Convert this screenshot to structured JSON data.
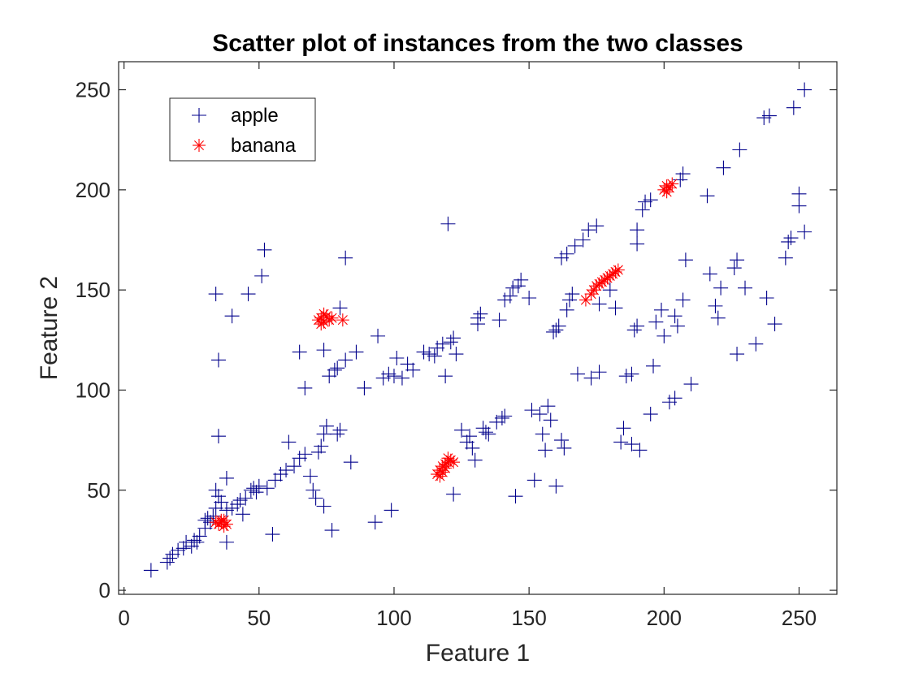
{
  "chart_data": {
    "type": "scatter",
    "title": "Scatter plot of instances from the two classes",
    "xlabel": "Feature 1",
    "ylabel": "Feature 2",
    "xlim": [
      -2,
      264
    ],
    "ylim": [
      -2,
      264
    ],
    "xticks": [
      0,
      50,
      100,
      150,
      200,
      250
    ],
    "yticks": [
      0,
      50,
      100,
      150,
      200,
      250
    ],
    "grid": false,
    "legend_position": "top-left",
    "series": [
      {
        "name": "apple",
        "marker": "plus",
        "color": "#00008B",
        "points": [
          [
            10,
            10
          ],
          [
            16,
            14
          ],
          [
            17,
            16
          ],
          [
            18,
            18
          ],
          [
            20,
            20
          ],
          [
            22,
            21
          ],
          [
            23,
            24
          ],
          [
            25,
            22
          ],
          [
            26,
            25
          ],
          [
            27,
            24
          ],
          [
            28,
            27
          ],
          [
            30,
            31
          ],
          [
            30,
            35
          ],
          [
            31,
            36
          ],
          [
            32,
            34
          ],
          [
            33,
            37
          ],
          [
            34,
            41
          ],
          [
            34,
            50
          ],
          [
            35,
            47
          ],
          [
            36,
            44
          ],
          [
            38,
            40
          ],
          [
            38,
            56
          ],
          [
            38,
            24
          ],
          [
            40,
            41
          ],
          [
            42,
            43
          ],
          [
            43,
            45
          ],
          [
            44,
            38
          ],
          [
            45,
            46
          ],
          [
            47,
            50
          ],
          [
            48,
            51
          ],
          [
            49,
            49
          ],
          [
            50,
            52
          ],
          [
            53,
            51
          ],
          [
            55,
            28
          ],
          [
            56,
            55
          ],
          [
            58,
            58
          ],
          [
            60,
            60
          ],
          [
            61,
            74
          ],
          [
            63,
            62
          ],
          [
            65,
            66
          ],
          [
            67,
            68
          ],
          [
            69,
            57
          ],
          [
            70,
            50
          ],
          [
            71,
            46
          ],
          [
            72,
            69
          ],
          [
            73,
            72
          ],
          [
            74,
            78
          ],
          [
            74,
            42
          ],
          [
            75,
            82
          ],
          [
            77,
            30
          ],
          [
            79,
            78
          ],
          [
            80,
            80
          ],
          [
            84,
            64
          ],
          [
            34,
            148
          ],
          [
            35,
            115
          ],
          [
            35,
            77
          ],
          [
            40,
            137
          ],
          [
            46,
            148
          ],
          [
            51,
            157
          ],
          [
            52,
            170
          ],
          [
            65,
            119
          ],
          [
            67,
            101
          ],
          [
            74,
            120
          ],
          [
            76,
            107
          ],
          [
            78,
            110
          ],
          [
            79,
            111
          ],
          [
            80,
            141
          ],
          [
            82,
            166
          ],
          [
            82,
            115
          ],
          [
            86,
            119
          ],
          [
            89,
            101
          ],
          [
            94,
            127
          ],
          [
            93,
            34
          ],
          [
            99,
            40
          ],
          [
            96,
            106
          ],
          [
            98,
            108
          ],
          [
            100,
            107
          ],
          [
            101,
            116
          ],
          [
            103,
            106
          ],
          [
            105,
            113
          ],
          [
            107,
            110
          ],
          [
            111,
            119
          ],
          [
            113,
            118
          ],
          [
            115,
            117
          ],
          [
            116,
            121
          ],
          [
            118,
            123
          ],
          [
            119,
            107
          ],
          [
            120,
            183
          ],
          [
            121,
            124
          ],
          [
            122,
            126
          ],
          [
            123,
            118
          ],
          [
            122,
            48
          ],
          [
            125,
            80
          ],
          [
            127,
            74
          ],
          [
            128,
            77
          ],
          [
            129,
            71
          ],
          [
            130,
            65
          ],
          [
            131,
            136
          ],
          [
            131,
            133
          ],
          [
            132,
            138
          ],
          [
            133,
            81
          ],
          [
            134,
            79
          ],
          [
            135,
            78
          ],
          [
            138,
            84
          ],
          [
            140,
            86
          ],
          [
            141,
            87
          ],
          [
            139,
            135
          ],
          [
            141,
            145
          ],
          [
            143,
            147
          ],
          [
            144,
            151
          ],
          [
            146,
            152
          ],
          [
            145,
            47
          ],
          [
            147,
            155
          ],
          [
            150,
            146
          ],
          [
            151,
            90
          ],
          [
            152,
            55
          ],
          [
            154,
            88
          ],
          [
            155,
            78
          ],
          [
            156,
            70
          ],
          [
            157,
            92
          ],
          [
            158,
            85
          ],
          [
            159,
            129
          ],
          [
            160,
            130
          ],
          [
            161,
            132
          ],
          [
            160,
            52
          ],
          [
            162,
            75
          ],
          [
            163,
            71
          ],
          [
            164,
            140
          ],
          [
            165,
            145
          ],
          [
            166,
            148
          ],
          [
            162,
            166
          ],
          [
            164,
            168
          ],
          [
            167,
            172
          ],
          [
            170,
            175
          ],
          [
            172,
            180
          ],
          [
            175,
            182
          ],
          [
            168,
            108
          ],
          [
            173,
            106
          ],
          [
            176,
            109
          ],
          [
            176,
            143
          ],
          [
            180,
            150
          ],
          [
            182,
            141
          ],
          [
            184,
            74
          ],
          [
            185,
            81
          ],
          [
            186,
            107
          ],
          [
            188,
            108
          ],
          [
            188,
            73
          ],
          [
            189,
            130
          ],
          [
            190,
            132
          ],
          [
            191,
            70
          ],
          [
            190,
            173
          ],
          [
            190,
            180
          ],
          [
            192,
            190
          ],
          [
            193,
            194
          ],
          [
            195,
            195
          ],
          [
            196,
            112
          ],
          [
            195,
            88
          ],
          [
            197,
            134
          ],
          [
            199,
            140
          ],
          [
            200,
            127
          ],
          [
            204,
            137
          ],
          [
            205,
            132
          ],
          [
            202,
            94
          ],
          [
            204,
            96
          ],
          [
            207,
            145
          ],
          [
            208,
            165
          ],
          [
            210,
            103
          ],
          [
            206,
            205
          ],
          [
            207,
            208
          ],
          [
            216,
            197
          ],
          [
            217,
            158
          ],
          [
            219,
            142
          ],
          [
            220,
            136
          ],
          [
            221,
            151
          ],
          [
            222,
            211
          ],
          [
            226,
            161
          ],
          [
            227,
            165
          ],
          [
            228,
            220
          ],
          [
            227,
            118
          ],
          [
            230,
            151
          ],
          [
            234,
            123
          ],
          [
            237,
            236
          ],
          [
            238,
            146
          ],
          [
            239,
            237
          ],
          [
            241,
            133
          ],
          [
            245,
            166
          ],
          [
            246,
            174
          ],
          [
            247,
            176
          ],
          [
            248,
            241
          ],
          [
            250,
            198
          ],
          [
            250,
            192
          ],
          [
            252,
            179
          ],
          [
            252,
            250
          ]
        ]
      },
      {
        "name": "banana",
        "marker": "asterisk",
        "color": "#FF0000",
        "points": [
          [
            35,
            33
          ],
          [
            36,
            34
          ],
          [
            37,
            32
          ],
          [
            38,
            33
          ],
          [
            36,
            35
          ],
          [
            34,
            34
          ],
          [
            37,
            35
          ],
          [
            72,
            135
          ],
          [
            73,
            136
          ],
          [
            74,
            134
          ],
          [
            75,
            137
          ],
          [
            76,
            135
          ],
          [
            74,
            138
          ],
          [
            73,
            133
          ],
          [
            77,
            136
          ],
          [
            81,
            135
          ],
          [
            116,
            58
          ],
          [
            117,
            60
          ],
          [
            118,
            62
          ],
          [
            119,
            63
          ],
          [
            120,
            64
          ],
          [
            121,
            65
          ],
          [
            118,
            59
          ],
          [
            119,
            61
          ],
          [
            117,
            57
          ],
          [
            120,
            66
          ],
          [
            122,
            64
          ],
          [
            171,
            145
          ],
          [
            173,
            148
          ],
          [
            174,
            150
          ],
          [
            175,
            152
          ],
          [
            176,
            153
          ],
          [
            177,
            154
          ],
          [
            178,
            155
          ],
          [
            179,
            156
          ],
          [
            180,
            157
          ],
          [
            181,
            158
          ],
          [
            182,
            159
          ],
          [
            183,
            160
          ],
          [
            200,
            200
          ],
          [
            201,
            202
          ],
          [
            202,
            201
          ],
          [
            203,
            203
          ],
          [
            201,
            199
          ]
        ]
      }
    ]
  }
}
